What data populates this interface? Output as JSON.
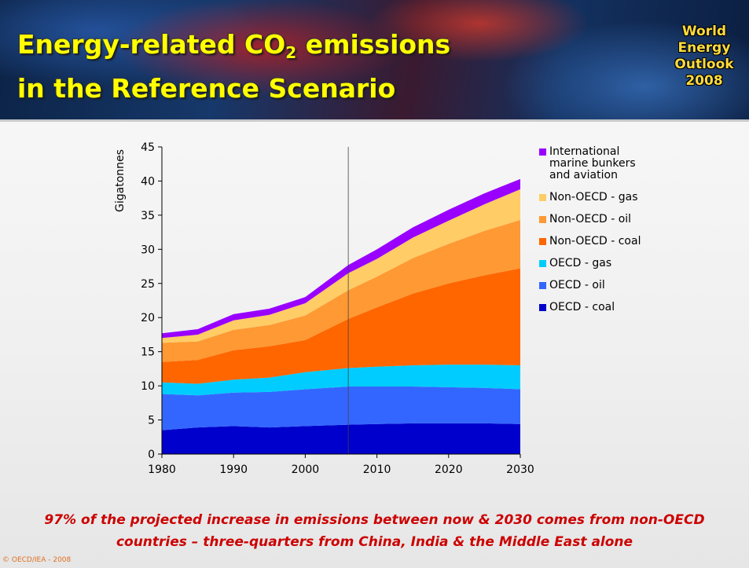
{
  "header": {
    "title_start": "Energy-related CO",
    "title_sub": "2",
    "title_end": " emissions",
    "title_line2": "in the Reference Scenario",
    "logo": [
      "World",
      "Energy",
      "Outlook",
      "2008"
    ]
  },
  "chart_data": {
    "type": "stacked-area",
    "y_label": "Gigatonnes",
    "x": [
      1980,
      1985,
      1990,
      1995,
      2000,
      2006,
      2010,
      2015,
      2020,
      2025,
      2030
    ],
    "series": [
      {
        "name": "OECD - coal",
        "color": "#0000cc",
        "values": [
          3.5,
          3.9,
          4.1,
          3.9,
          4.1,
          4.3,
          4.4,
          4.5,
          4.5,
          4.5,
          4.4
        ]
      },
      {
        "name": "OECD - oil",
        "color": "#3366ff",
        "values": [
          5.3,
          4.7,
          4.9,
          5.2,
          5.4,
          5.6,
          5.5,
          5.4,
          5.3,
          5.2,
          5.1
        ]
      },
      {
        "name": "OECD - gas",
        "color": "#00ccff",
        "values": [
          1.7,
          1.7,
          1.9,
          2.1,
          2.5,
          2.7,
          2.9,
          3.1,
          3.3,
          3.4,
          3.5
        ]
      },
      {
        "name": "Non-OECD - coal",
        "color": "#ff6600",
        "values": [
          3.0,
          3.5,
          4.3,
          4.6,
          4.7,
          7.2,
          8.7,
          10.5,
          11.9,
          13.1,
          14.2
        ]
      },
      {
        "name": "Non-OECD - oil",
        "color": "#ff9933",
        "values": [
          2.8,
          2.7,
          3.0,
          3.1,
          3.6,
          4.2,
          4.5,
          5.2,
          5.8,
          6.5,
          7.1
        ]
      },
      {
        "name": "Non-OECD - gas",
        "color": "#ffcc66",
        "values": [
          0.7,
          1.0,
          1.4,
          1.5,
          1.8,
          2.5,
          2.6,
          3.0,
          3.4,
          3.9,
          4.5
        ]
      },
      {
        "name": "International marine bunkers and aviation",
        "color": "#9900ff",
        "values": [
          0.7,
          0.8,
          0.9,
          0.9,
          0.9,
          1.2,
          1.4,
          1.5,
          1.6,
          1.6,
          1.5
        ]
      }
    ],
    "xlim": [
      1980,
      2030
    ],
    "xticks": [
      1980,
      1990,
      2000,
      2010,
      2020,
      2030
    ],
    "ylim": [
      0,
      45
    ],
    "yticks": [
      0,
      5,
      10,
      15,
      20,
      25,
      30,
      35,
      40,
      45
    ],
    "vline": 2006,
    "legend": "right"
  },
  "footer": {
    "note": [
      "97% of the projected increase in emissions between now & 2030 comes from non-OECD",
      "countries – three-quarters from China, India & the Middle East alone"
    ],
    "copyright": "© OECD/IEA - 2008"
  }
}
